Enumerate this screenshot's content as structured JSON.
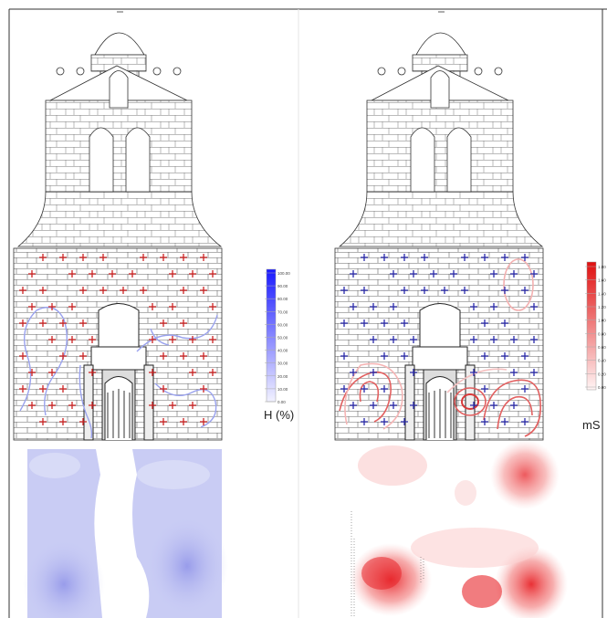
{
  "left_panel": {
    "legend": {
      "ticks": [
        "100.00",
        "90.00",
        "80.00",
        "70.00",
        "60.00",
        "50.00",
        "40.00",
        "30.00",
        "20.00",
        "10.00",
        "0.00"
      ],
      "unit": "H (%)",
      "color_max": "#1a1aff",
      "color_min": "#f2f2ff"
    },
    "marker_color": "#cc2222",
    "contour_color": "#9aa2ee",
    "map_color": "#c9ccf4"
  },
  "right_panel": {
    "legend": {
      "ticks": [
        "1.80",
        "1.60",
        "1.40",
        "1.20",
        "1.00",
        "0.80",
        "0.60",
        "0.40",
        "0.20",
        "0.00"
      ],
      "unit": "mS",
      "color_max": "#e01010",
      "color_min": "#fff4f4"
    },
    "marker_color": "#2a2aaa",
    "contour_color": "#e26060",
    "map_color": "#f07070"
  }
}
